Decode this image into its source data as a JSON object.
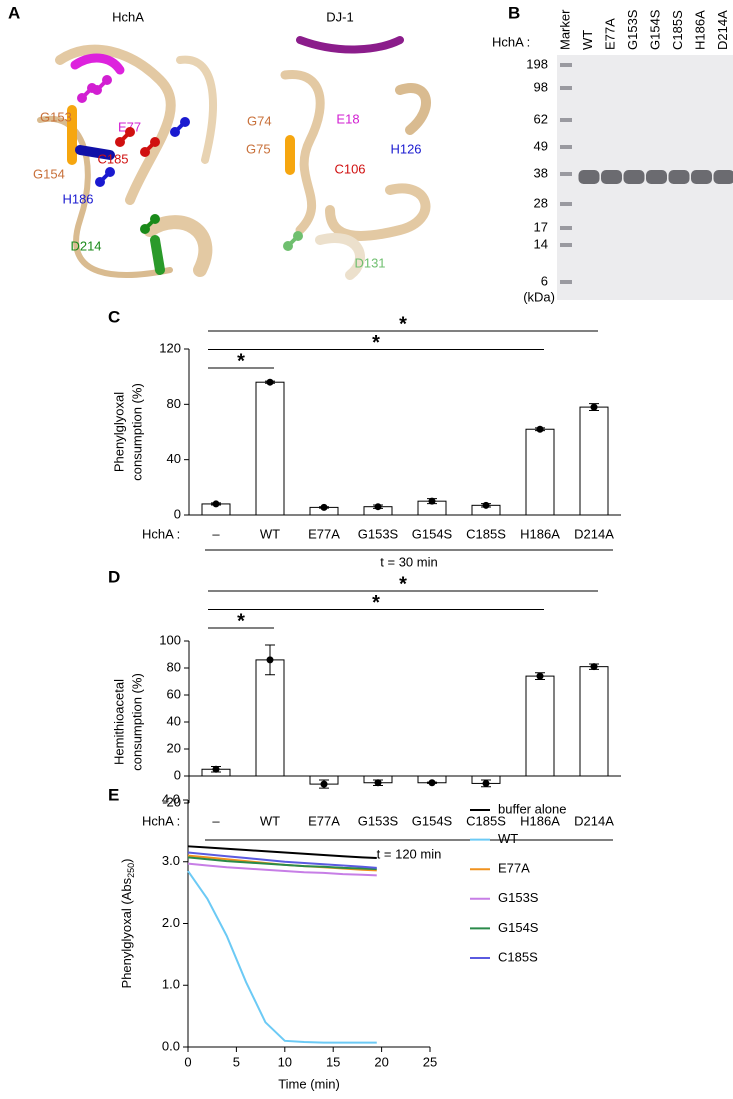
{
  "panel_a": {
    "label": "A",
    "structures": [
      {
        "title": "HchA",
        "residues": [
          {
            "name": "G153",
            "color": "#c8703a"
          },
          {
            "name": "E77",
            "color": "#d21fd2"
          },
          {
            "name": "C185",
            "color": "#d01010"
          },
          {
            "name": "G154",
            "color": "#c8703a"
          },
          {
            "name": "H186",
            "color": "#1a1ad0"
          },
          {
            "name": "D214",
            "color": "#1a8a1a"
          }
        ]
      },
      {
        "title": "DJ-1",
        "residues": [
          {
            "name": "G74",
            "color": "#c8703a"
          },
          {
            "name": "E18",
            "color": "#d21fd2"
          },
          {
            "name": "G75",
            "color": "#c8703a"
          },
          {
            "name": "H126",
            "color": "#1a1ad0"
          },
          {
            "name": "C106",
            "color": "#d01010"
          },
          {
            "name": "D131",
            "color": "#6fbf6f"
          }
        ]
      }
    ]
  },
  "panel_b": {
    "label": "B",
    "row_label": "HchA :",
    "lanes": [
      "Marker",
      "WT",
      "E77A",
      "G153S",
      "G154S",
      "C185S",
      "H186A",
      "D214A"
    ],
    "markers": [
      "198",
      "98",
      "62",
      "49",
      "38",
      "28",
      "17",
      "14",
      "6"
    ],
    "unit": "(kDa)"
  },
  "chart_data": [
    {
      "type": "bar",
      "panel": "C",
      "ylabel": [
        "Phenylglyoxal",
        "consumption (%)"
      ],
      "group_label": "HchA :",
      "xlabel": "t = 30 min",
      "categories": [
        "–",
        "WT",
        "E77A",
        "G153S",
        "G154S",
        "C185S",
        "H186A",
        "D214A"
      ],
      "values": [
        8,
        96,
        5.5,
        6,
        10,
        7,
        62,
        78
      ],
      "errors": [
        0.8,
        0.8,
        0.5,
        1.2,
        1.8,
        1.2,
        1,
        2.5
      ],
      "ylim": [
        0,
        120
      ],
      "yticks": [
        0,
        40,
        80,
        120
      ],
      "color": "#ffffff",
      "significance": [
        {
          "from": 0,
          "to": 7,
          "label": "*"
        },
        {
          "from": 0,
          "to": 6,
          "label": "*"
        },
        {
          "from": 0,
          "to": 1,
          "label": "*"
        }
      ]
    },
    {
      "type": "bar",
      "panel": "D",
      "ylabel": [
        "Hemithioacetal",
        "consumption (%)"
      ],
      "group_label": "HchA :",
      "xlabel": "t = 120 min",
      "categories": [
        "–",
        "WT",
        "E77A",
        "G153S",
        "G154S",
        "C185S",
        "H186A",
        "D214A"
      ],
      "values": [
        5,
        86,
        -6,
        -5,
        -5,
        -5.5,
        74,
        81
      ],
      "errors": [
        2,
        11,
        3,
        2,
        0.5,
        2.5,
        2.5,
        2
      ],
      "ylim": [
        -20,
        100
      ],
      "yticks": [
        -20,
        0,
        20,
        40,
        60,
        80,
        100
      ],
      "color": "#ffffff",
      "significance": [
        {
          "from": 0,
          "to": 7,
          "label": "*"
        },
        {
          "from": 0,
          "to": 6,
          "label": "*"
        },
        {
          "from": 0,
          "to": 1,
          "label": "*"
        }
      ]
    },
    {
      "type": "line",
      "panel": "E",
      "ylabel": "Phenylglyoxal (Abs",
      "ylabel_sub": "250",
      "ylabel_end": ")",
      "xlabel": "Time (min)",
      "x": [
        0,
        2,
        4,
        6,
        8,
        10,
        12,
        14,
        16,
        18,
        19.5
      ],
      "xlim": [
        0,
        25
      ],
      "xticks": [
        0,
        5,
        10,
        15,
        20,
        25
      ],
      "ylim": [
        0,
        4
      ],
      "yticks": [
        {
          "value": 0,
          "label": "0.0"
        },
        {
          "value": 1,
          "label": "1.0"
        },
        {
          "value": 2,
          "label": "2.0"
        },
        {
          "value": 3,
          "label": "3.0"
        },
        {
          "value": 4,
          "label": "4.0"
        }
      ],
      "series": [
        {
          "name": "buffer alone",
          "color": "#000000",
          "values": [
            3.25,
            3.23,
            3.21,
            3.19,
            3.17,
            3.15,
            3.13,
            3.11,
            3.09,
            3.07,
            3.06
          ]
        },
        {
          "name": "WT",
          "color": "#6ccaf5",
          "values": [
            2.85,
            2.4,
            1.8,
            1.05,
            0.4,
            0.1,
            0.08,
            0.07,
            0.07,
            0.07,
            0.07
          ]
        },
        {
          "name": "E77A",
          "color": "#f0921e",
          "values": [
            3.1,
            3.07,
            3.04,
            3.01,
            2.98,
            2.95,
            2.93,
            2.91,
            2.89,
            2.87,
            2.86
          ]
        },
        {
          "name": "G153S",
          "color": "#c77ee6",
          "values": [
            2.97,
            2.94,
            2.91,
            2.89,
            2.87,
            2.85,
            2.83,
            2.82,
            2.8,
            2.79,
            2.78
          ]
        },
        {
          "name": "G154S",
          "color": "#2a8a4a",
          "values": [
            3.07,
            3.04,
            3.01,
            2.99,
            2.97,
            2.95,
            2.93,
            2.92,
            2.9,
            2.89,
            2.88
          ]
        },
        {
          "name": "C185S",
          "color": "#5a5ae0",
          "values": [
            3.15,
            3.12,
            3.09,
            3.06,
            3.03,
            3.0,
            2.98,
            2.96,
            2.94,
            2.92,
            2.9
          ]
        }
      ]
    }
  ]
}
